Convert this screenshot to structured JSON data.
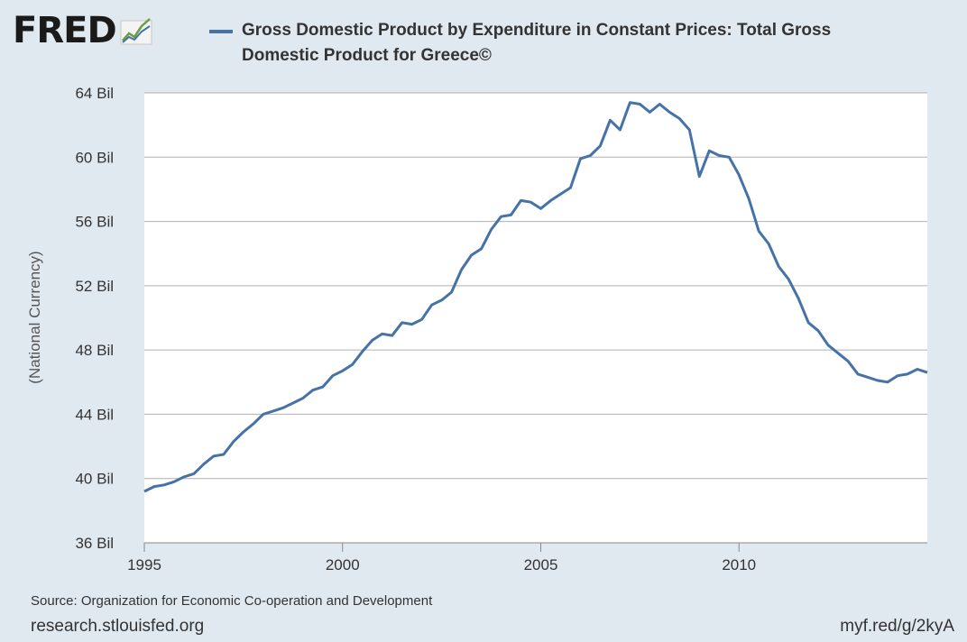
{
  "logo": {
    "text": "FRED"
  },
  "legend": {
    "series_label": "Gross Domestic Product by Expenditure in Constant Prices: Total Gross Domestic Product for Greece©",
    "color": "#4572a7"
  },
  "footer": {
    "source": "Source: Organization for Economic Co-operation and Development",
    "site": "research.stlouisfed.org",
    "shortlink": "myf.red/g/2kyA"
  },
  "chart_data": {
    "type": "line",
    "ylabel": "(National Currency)",
    "xlabel": "",
    "ylim": [
      36,
      64
    ],
    "xlim": [
      1995.0,
      2014.75
    ],
    "y_ticks": [
      {
        "value": 36,
        "label": "36 Bil"
      },
      {
        "value": 40,
        "label": "40 Bil"
      },
      {
        "value": 44,
        "label": "44 Bil"
      },
      {
        "value": 48,
        "label": "48 Bil"
      },
      {
        "value": 52,
        "label": "52 Bil"
      },
      {
        "value": 56,
        "label": "56 Bil"
      },
      {
        "value": 60,
        "label": "60 Bil"
      },
      {
        "value": 64,
        "label": "64 Bil"
      }
    ],
    "x_ticks": [
      {
        "value": 1995,
        "label": "1995"
      },
      {
        "value": 2000,
        "label": "2000"
      },
      {
        "value": 2005,
        "label": "2005"
      },
      {
        "value": 2010,
        "label": "2010"
      }
    ],
    "grid": true,
    "legend_position": "top",
    "series": [
      {
        "color": "#4572a7",
        "x": [
          1995.0,
          1995.25,
          1995.5,
          1995.75,
          1996.0,
          1996.25,
          1996.5,
          1996.75,
          1997.0,
          1997.25,
          1997.5,
          1997.75,
          1998.0,
          1998.25,
          1998.5,
          1998.75,
          1999.0,
          1999.25,
          1999.5,
          1999.75,
          2000.0,
          2000.25,
          2000.5,
          2000.75,
          2001.0,
          2001.25,
          2001.5,
          2001.75,
          2002.0,
          2002.25,
          2002.5,
          2002.75,
          2003.0,
          2003.25,
          2003.5,
          2003.75,
          2004.0,
          2004.25,
          2004.5,
          2004.75,
          2005.0,
          2005.25,
          2005.5,
          2005.75,
          2006.0,
          2006.25,
          2006.5,
          2006.75,
          2007.0,
          2007.25,
          2007.5,
          2007.75,
          2008.0,
          2008.25,
          2008.5,
          2008.75,
          2009.0,
          2009.25,
          2009.5,
          2009.75,
          2010.0,
          2010.25,
          2010.5,
          2010.75,
          2011.0,
          2011.25,
          2011.5,
          2011.75,
          2012.0,
          2012.25,
          2012.5,
          2012.75,
          2013.0,
          2013.25,
          2013.5,
          2013.75,
          2014.0,
          2014.25,
          2014.5,
          2014.75
        ],
        "values": [
          39.2,
          39.5,
          39.6,
          39.8,
          40.1,
          40.3,
          40.9,
          41.4,
          41.5,
          42.3,
          42.9,
          43.4,
          44.0,
          44.2,
          44.4,
          44.7,
          45.0,
          45.5,
          45.7,
          46.4,
          46.7,
          47.1,
          47.9,
          48.6,
          49.0,
          48.9,
          49.7,
          49.6,
          49.9,
          50.8,
          51.1,
          51.6,
          53.0,
          53.9,
          54.3,
          55.5,
          56.3,
          56.4,
          57.3,
          57.2,
          56.8,
          57.3,
          57.7,
          58.1,
          59.9,
          60.1,
          60.7,
          62.3,
          61.7,
          63.4,
          63.3,
          62.8,
          63.3,
          62.8,
          62.4,
          61.7,
          58.8,
          60.4,
          60.1,
          60.0,
          58.9,
          57.4,
          55.4,
          54.6,
          53.2,
          52.4,
          51.2,
          49.7,
          49.2,
          48.3,
          47.8,
          47.3,
          46.5,
          46.3,
          46.1,
          46.0,
          46.4,
          46.5,
          46.8,
          46.6
        ]
      }
    ]
  }
}
